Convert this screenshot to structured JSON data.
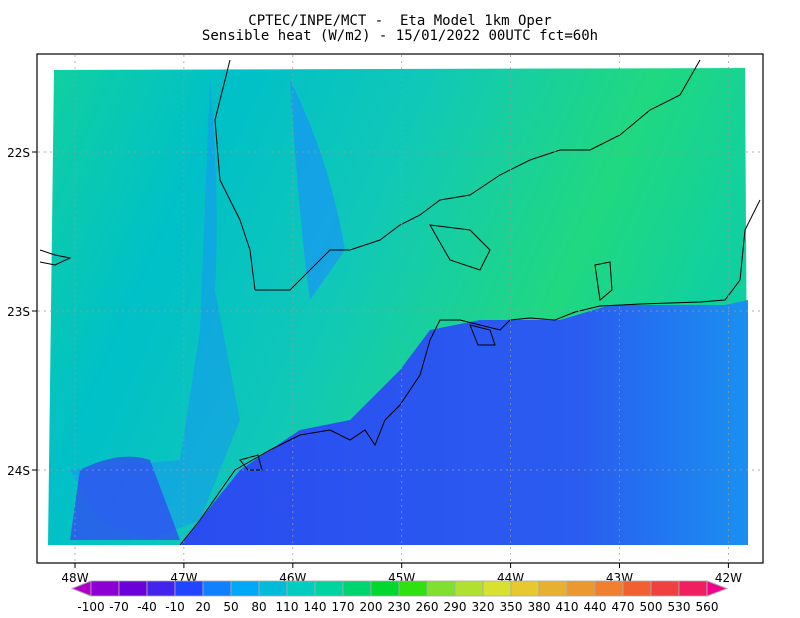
{
  "header": {
    "title_line1": "CPTEC/INPE/MCT -  Eta Model 1km Oper",
    "title_line2": "Sensible heat (W/m2) - 15/01/2022 00UTC fct=60h"
  },
  "map": {
    "variable": "Sensible heat",
    "units": "W/m2",
    "lon_labels": [
      "48W",
      "47W",
      "46W",
      "45W",
      "44W",
      "43W",
      "42W"
    ],
    "lat_labels": [
      "22S",
      "23S",
      "24S"
    ],
    "grid": "dotted",
    "colors": {
      "land_low": "#1a8cff",
      "land_mid": "#00c8b4",
      "land_high": "#20d860",
      "ocean": "#2a4cf0",
      "ocean_far": "#1a8cf0",
      "coast": "#000000"
    }
  },
  "colorbar": {
    "labels": [
      "-100",
      "-70",
      "-40",
      "-10",
      "20",
      "50",
      "80",
      "110",
      "140",
      "170",
      "200",
      "230",
      "260",
      "290",
      "320",
      "350",
      "380",
      "410",
      "440",
      "470",
      "500",
      "530",
      "560"
    ],
    "low_extend_color": "#b000c8",
    "high_extend_color": "#f0008c",
    "colors": [
      "#8c00d4",
      "#6c00d8",
      "#4424ec",
      "#2044ff",
      "#1080ff",
      "#00a8f8",
      "#00bcd8",
      "#00ccc0",
      "#00d4a0",
      "#00d470",
      "#00d830",
      "#30e010",
      "#80e030",
      "#b0e030",
      "#d8e030",
      "#e8c830",
      "#e8b030",
      "#ec9830",
      "#f08030",
      "#f06030",
      "#f04040",
      "#f02060"
    ]
  }
}
